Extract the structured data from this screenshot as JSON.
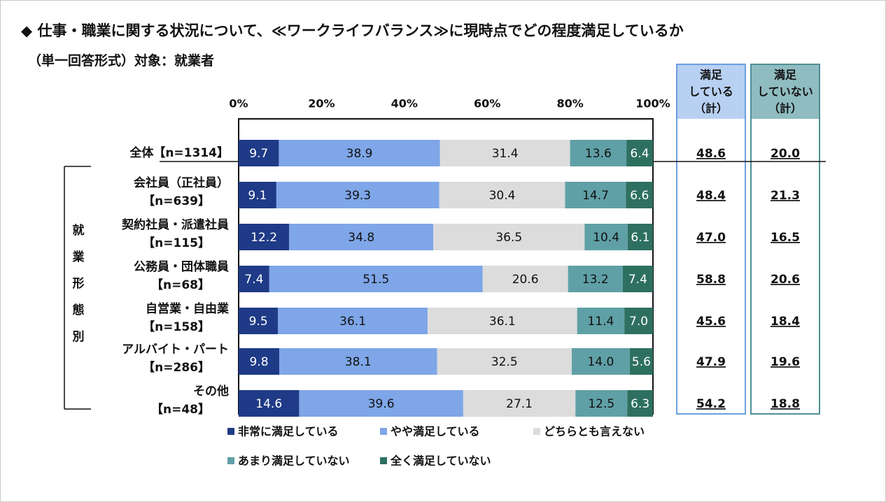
{
  "title": "◆ 仕事・職業に関する状況について、≪ワークライフバランス≫に現時点でどの程度満足しているか",
  "subtitle": "（単一回答形式）対象：就業者",
  "chart_data": {
    "type": "bar",
    "orientation": "horizontal",
    "stacked": true,
    "xlim": [
      0,
      100
    ],
    "x_ticks": [
      "0%",
      "20%",
      "40%",
      "60%",
      "80%",
      "100%"
    ],
    "group_label": [
      "就",
      "業",
      "形",
      "態",
      "別"
    ],
    "categories": [
      {
        "label": [
          "全体【n=1314】"
        ]
      },
      {
        "label": [
          "会社員（正社員）",
          "【n=639】"
        ]
      },
      {
        "label": [
          "契約社員・派遣社員",
          "【n=115】"
        ]
      },
      {
        "label": [
          "公務員・団体職員",
          "【n=68】"
        ]
      },
      {
        "label": [
          "自営業・自由業",
          "【n=158】"
        ]
      },
      {
        "label": [
          "アルバイト・パート",
          "【n=286】"
        ]
      },
      {
        "label": [
          "その他",
          "【n=48】"
        ]
      }
    ],
    "series": [
      {
        "name": "非常に満足している",
        "color": "#1f3a86",
        "text_color": "#ffffff",
        "values": [
          9.7,
          9.1,
          12.2,
          7.4,
          9.5,
          9.8,
          14.6
        ]
      },
      {
        "name": "やや満足している",
        "color": "#7ea6e8",
        "text_color": "#111111",
        "values": [
          38.9,
          39.3,
          34.8,
          51.5,
          36.1,
          38.1,
          39.6
        ]
      },
      {
        "name": "どちらとも言えない",
        "color": "#dcdcdc",
        "text_color": "#111111",
        "values": [
          31.4,
          30.4,
          36.5,
          20.6,
          36.1,
          32.5,
          27.1
        ]
      },
      {
        "name": "あまり満足していない",
        "color": "#5fa0a6",
        "text_color": "#111111",
        "values": [
          13.6,
          14.7,
          10.4,
          13.2,
          11.4,
          14.0,
          12.5
        ]
      },
      {
        "name": "全く満足していない",
        "color": "#2e7060",
        "text_color": "#ffffff",
        "values": [
          6.4,
          6.6,
          6.1,
          7.4,
          7.0,
          5.6,
          6.3
        ]
      }
    ],
    "summary_columns": [
      {
        "header": [
          "満足",
          "している",
          "（計）"
        ],
        "fill": "#b8d0f2",
        "border": "#6a9fe0",
        "values": [
          "48.6",
          "48.4",
          "47.0",
          "58.8",
          "45.6",
          "47.9",
          "54.2"
        ]
      },
      {
        "header": [
          "満足",
          "していない",
          "（計）"
        ],
        "fill": "#8fbcc0",
        "border": "#4f8f95",
        "values": [
          "20.0",
          "21.3",
          "16.5",
          "20.6",
          "18.4",
          "19.6",
          "18.8"
        ]
      }
    ]
  }
}
